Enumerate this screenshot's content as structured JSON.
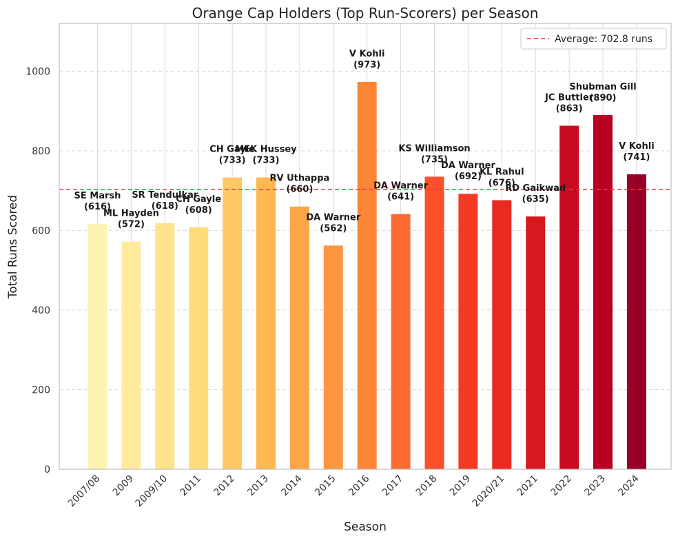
{
  "chart_data": {
    "type": "bar",
    "title": "Orange Cap Holders (Top Run-Scorers) per Season",
    "xlabel": "Season",
    "ylabel": "Total Runs Scored",
    "ylim": [
      0,
      1120
    ],
    "yticks": [
      0,
      200,
      400,
      600,
      800,
      1000
    ],
    "grid": true,
    "legend_position": "top-right",
    "categories": [
      "2007/08",
      "2009",
      "2009/10",
      "2011",
      "2012",
      "2013",
      "2014",
      "2015",
      "2016",
      "2017",
      "2018",
      "2019",
      "2020/21",
      "2021",
      "2022",
      "2023",
      "2024"
    ],
    "values": [
      616,
      572,
      618,
      608,
      733,
      733,
      660,
      562,
      973,
      641,
      735,
      692,
      676,
      635,
      863,
      890,
      741
    ],
    "bar_labels": [
      [
        "SE Marsh",
        "(616)"
      ],
      [
        "ML Hayden",
        "(572)"
      ],
      [
        "SR Tendulkar",
        "(618)"
      ],
      [
        "CH Gayle",
        "(608)"
      ],
      [
        "CH Gayle",
        "(733)"
      ],
      [
        "MEK Hussey",
        "(733)"
      ],
      [
        "RV Uthappa",
        "(660)"
      ],
      [
        "DA Warner",
        "(562)"
      ],
      [
        "V Kohli",
        "(973)"
      ],
      [
        "DA Warner",
        "(641)"
      ],
      [
        "KS Williamson",
        "(735)"
      ],
      [
        "DA Warner",
        "(692)"
      ],
      [
        "KL Rahul",
        "(676)"
      ],
      [
        "RD Gaikwad",
        "(635)"
      ],
      [
        "JC Buttler",
        "(863)"
      ],
      [
        "Shubman Gill",
        "(890)"
      ],
      [
        "V Kohli",
        "(741)"
      ]
    ],
    "colors": [
      "#fff3b2",
      "#ffeb9b",
      "#fee38a",
      "#fedc7c",
      "#fec965",
      "#feb751",
      "#fea647",
      "#fd9440",
      "#fd8538",
      "#fc6b31",
      "#fb5029",
      "#f33b24",
      "#e82a21",
      "#d7191f",
      "#c90b22",
      "#b70024",
      "#9a0027"
    ],
    "average": {
      "value": 702.8,
      "label": "Average: 702.8 runs",
      "color": "#f03a3a"
    }
  }
}
